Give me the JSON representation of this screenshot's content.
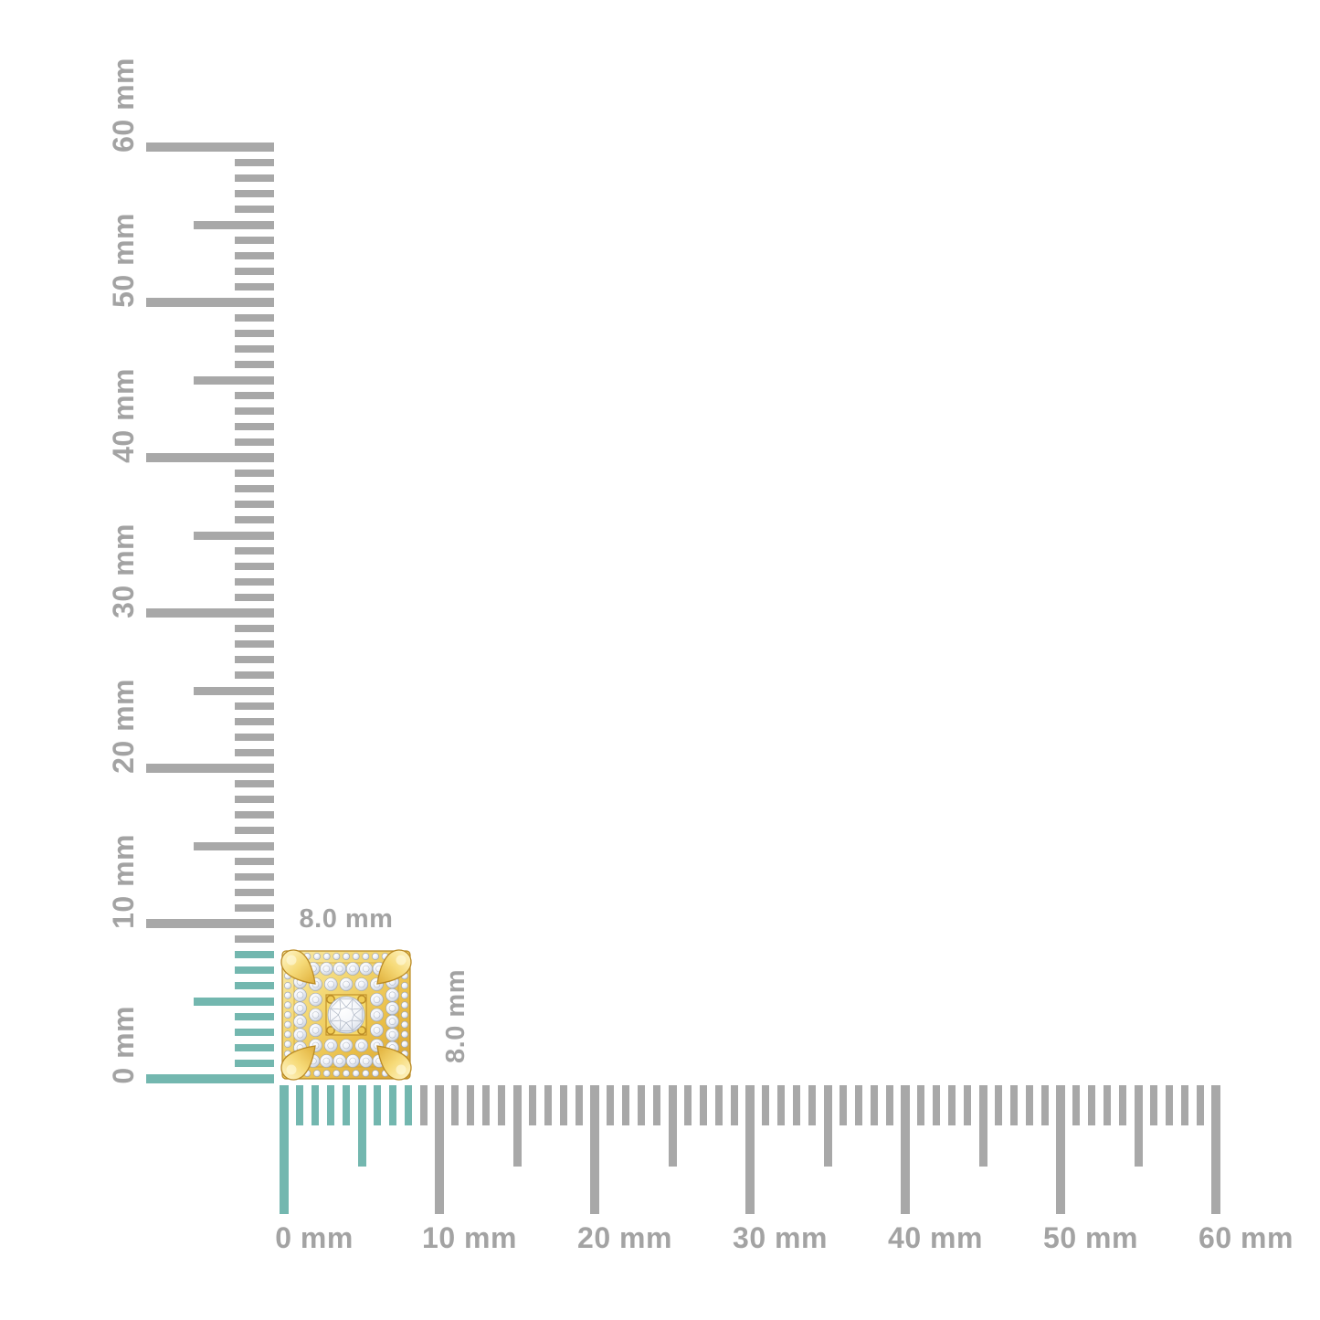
{
  "canvas": {
    "background": "#ffffff"
  },
  "product": {
    "image": "gold-square-pave-diamond-stud-earring",
    "width_label": "8.0 mm",
    "height_label": "8.0 mm"
  },
  "rulers": {
    "unit": "mm",
    "highlight_span_mm": [
      0,
      8
    ],
    "colors": {
      "tick_gray": "#a8a8a8",
      "tick_highlight": "#73b7af",
      "label_gray": "#a3a3a3"
    },
    "vertical": {
      "side": "left",
      "min_mm": 0,
      "max_mm": 60,
      "minor_step_mm": 1,
      "medium_step_mm": 5,
      "major_step_mm": 10,
      "labels": [
        "0 mm",
        "10 mm",
        "20 mm",
        "30 mm",
        "40 mm",
        "50 mm",
        "60 mm"
      ]
    },
    "horizontal": {
      "side": "bottom",
      "min_mm": 0,
      "max_mm": 60,
      "minor_step_mm": 1,
      "medium_step_mm": 5,
      "major_step_mm": 10,
      "labels": [
        "0 mm",
        "10 mm",
        "20 mm",
        "30 mm",
        "40 mm",
        "50 mm",
        "60 mm"
      ]
    }
  }
}
